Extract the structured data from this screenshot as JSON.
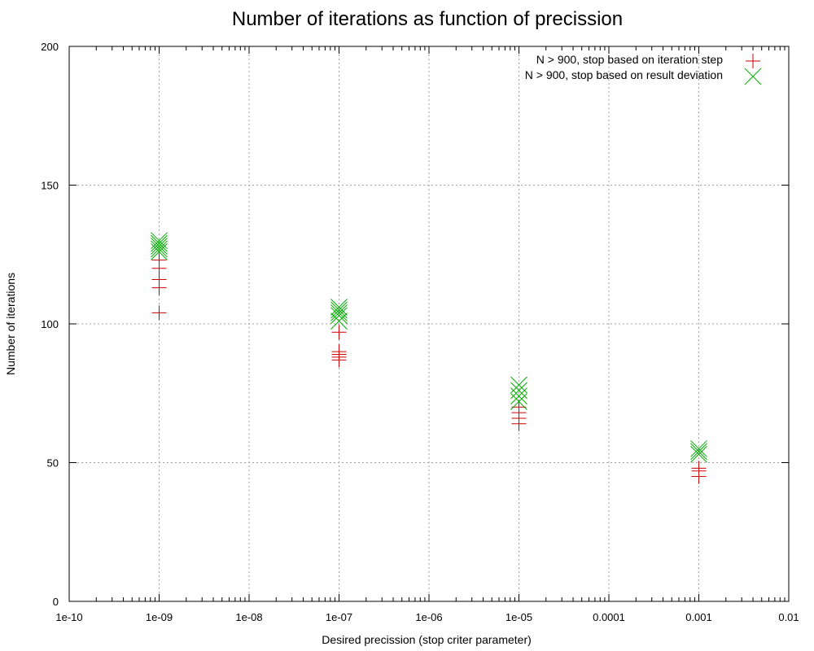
{
  "chart_data": {
    "type": "scatter",
    "title": "Number of iterations as function of precission",
    "xlabel": "Desired precission (stop criter parameter)",
    "ylabel": "Number of iterations",
    "xscale": "log",
    "xlim": [
      1e-10,
      0.01
    ],
    "ylim": [
      0,
      200
    ],
    "xticks": [
      1e-10,
      1e-09,
      1e-08,
      1e-07,
      1e-06,
      1e-05,
      0.0001,
      0.001,
      0.01
    ],
    "xtick_labels": [
      "1e-10",
      "1e-09",
      "1e-08",
      "1e-07",
      "1e-06",
      "1e-05",
      "0.0001",
      "0.001",
      "0.01"
    ],
    "yticks": [
      0,
      50,
      100,
      150,
      200
    ],
    "ytick_labels": [
      "0",
      "50",
      "100",
      "150",
      "200"
    ],
    "grid": true,
    "legend_position": "top-right",
    "series": [
      {
        "name": "N > 900, stop based on iteration step",
        "marker": "plus",
        "color": "#cc0000",
        "points": [
          [
            1e-09,
            104
          ],
          [
            1e-09,
            113
          ],
          [
            1e-09,
            116
          ],
          [
            1e-09,
            120
          ],
          [
            1e-09,
            123
          ],
          [
            1e-07,
            87
          ],
          [
            1e-07,
            88
          ],
          [
            1e-07,
            89
          ],
          [
            1e-07,
            90
          ],
          [
            1e-07,
            97
          ],
          [
            1e-05,
            64
          ],
          [
            1e-05,
            66
          ],
          [
            1e-05,
            68
          ],
          [
            1e-05,
            70
          ],
          [
            0.001,
            45
          ],
          [
            0.001,
            47
          ],
          [
            0.001,
            48
          ]
        ]
      },
      {
        "name": "N > 900, stop based on result deviation",
        "marker": "cross",
        "color": "#00aa00",
        "points": [
          [
            1e-09,
            126
          ],
          [
            1e-09,
            127
          ],
          [
            1e-09,
            128
          ],
          [
            1e-09,
            129
          ],
          [
            1e-09,
            130
          ],
          [
            1e-07,
            101
          ],
          [
            1e-07,
            103
          ],
          [
            1e-07,
            104
          ],
          [
            1e-07,
            105
          ],
          [
            1e-07,
            106
          ],
          [
            1e-05,
            72
          ],
          [
            1e-05,
            74
          ],
          [
            1e-05,
            76
          ],
          [
            1e-05,
            78
          ],
          [
            0.001,
            53
          ],
          [
            0.001,
            54
          ],
          [
            0.001,
            55
          ]
        ]
      }
    ]
  }
}
